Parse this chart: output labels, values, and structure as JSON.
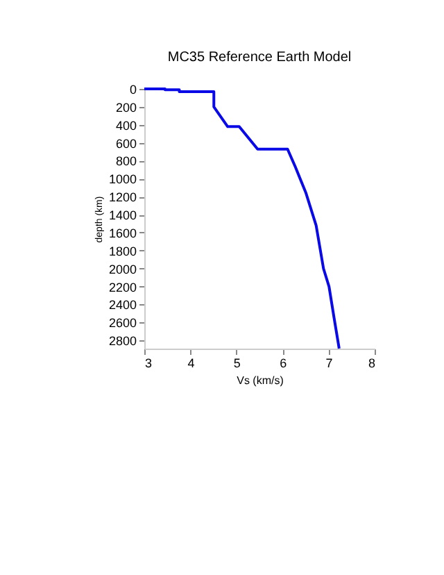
{
  "chart_data": {
    "type": "line",
    "title": "MC35 Reference Earth Model",
    "xlabel": "Vs (km/s)",
    "ylabel": "depth (km)",
    "x": [
      3.0,
      3.45,
      3.45,
      3.76,
      3.76,
      4.51,
      4.51,
      4.81,
      5.06,
      5.46,
      6.11,
      6.28,
      6.51,
      6.73,
      6.89,
      7.01,
      7.12,
      7.23
    ],
    "series": [
      {
        "color": "#0a0ae6",
        "values": [
          0,
          0,
          10,
          10,
          30,
          30,
          200,
          420,
          420,
          670,
          670,
          870,
          1160,
          1520,
          2000,
          2200,
          2550,
          2890
        ]
      }
    ],
    "xlim": [
      3,
      8
    ],
    "xticks": [
      3,
      4,
      5,
      6,
      7,
      8
    ],
    "ylim": [
      2891,
      0
    ],
    "yticks": [
      0,
      200,
      400,
      600,
      800,
      1000,
      1200,
      1400,
      1600,
      1800,
      2000,
      2200,
      2400,
      2600,
      2800
    ],
    "grid": false,
    "legend": false,
    "marker": "none",
    "line_style": "solid"
  }
}
